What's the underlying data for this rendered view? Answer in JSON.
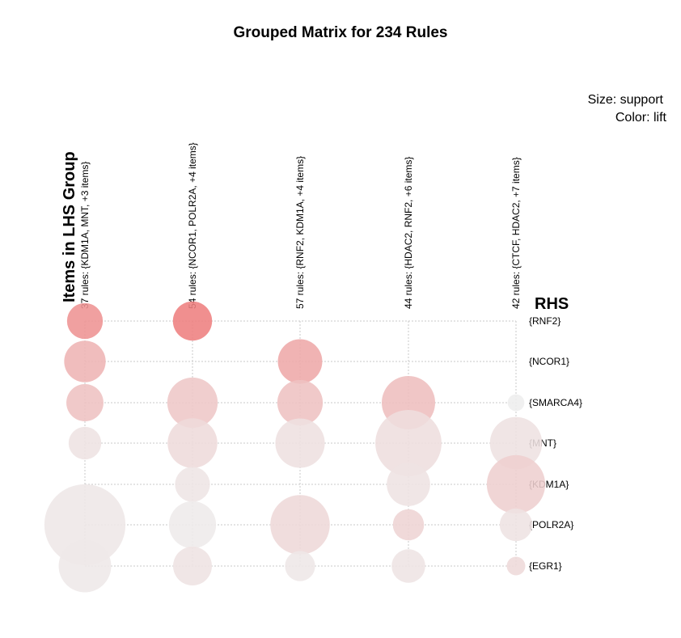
{
  "chart_data": {
    "type": "scatter",
    "title": "Grouped Matrix for 234 Rules",
    "size_label": "Size: support",
    "color_label": "Color: lift",
    "ylabel": "Items in LHS Group",
    "xlabel": "RHS",
    "lhs_groups": [
      "37 rules: {KDM1A, MNT, +3 items}",
      "54 rules: {NCOR1, POLR2A, +4 items}",
      "57 rules: {RNF2, KDM1A, +4 items}",
      "44 rules: {HDAC2, RNF2, +6 items}",
      "42 rules: {CTCF, HDAC2, +7 items}"
    ],
    "rhs_items": [
      "{RNF2}",
      "{NCOR1}",
      "{SMARCA4}",
      "{MNT}",
      "{KDM1A}",
      "{POLR2A}",
      "{EGR1}"
    ],
    "color_scale": {
      "low": "#eeeeee",
      "high": "#ee7f7f"
    },
    "points": [
      {
        "group": 0,
        "rhs": 0,
        "support": 0.41,
        "lift": 0.82
      },
      {
        "group": 0,
        "rhs": 1,
        "support": 0.55,
        "lift": 0.52
      },
      {
        "group": 0,
        "rhs": 2,
        "support": 0.44,
        "lift": 0.4
      },
      {
        "group": 0,
        "rhs": 3,
        "support": 0.34,
        "lift": 0.1
      },
      {
        "group": 0,
        "rhs": 5,
        "support": 2.1,
        "lift": 0.06
      },
      {
        "group": 0,
        "rhs": 6,
        "support": 0.88,
        "lift": 0.05
      },
      {
        "group": 1,
        "rhs": 0,
        "support": 0.49,
        "lift": 1.0
      },
      {
        "group": 1,
        "rhs": 2,
        "support": 0.81,
        "lift": 0.35
      },
      {
        "group": 1,
        "rhs": 3,
        "support": 0.79,
        "lift": 0.17
      },
      {
        "group": 1,
        "rhs": 4,
        "support": 0.39,
        "lift": 0.08
      },
      {
        "group": 1,
        "rhs": 5,
        "support": 0.71,
        "lift": 0.03
      },
      {
        "group": 1,
        "rhs": 6,
        "support": 0.48,
        "lift": 0.1
      },
      {
        "group": 2,
        "rhs": 1,
        "support": 0.63,
        "lift": 0.62
      },
      {
        "group": 2,
        "rhs": 2,
        "support": 0.66,
        "lift": 0.4
      },
      {
        "group": 2,
        "rhs": 3,
        "support": 0.78,
        "lift": 0.13
      },
      {
        "group": 2,
        "rhs": 5,
        "support": 1.13,
        "lift": 0.2
      },
      {
        "group": 2,
        "rhs": 6,
        "support": 0.29,
        "lift": 0.06
      },
      {
        "group": 3,
        "rhs": 2,
        "support": 0.91,
        "lift": 0.43
      },
      {
        "group": 3,
        "rhs": 3,
        "support": 1.4,
        "lift": 0.14
      },
      {
        "group": 3,
        "rhs": 4,
        "support": 0.6,
        "lift": 0.11
      },
      {
        "group": 3,
        "rhs": 5,
        "support": 0.31,
        "lift": 0.23
      },
      {
        "group": 3,
        "rhs": 6,
        "support": 0.36,
        "lift": 0.09
      },
      {
        "group": 4,
        "rhs": 2,
        "support": 0.09,
        "lift": 0.0
      },
      {
        "group": 4,
        "rhs": 3,
        "support": 0.87,
        "lift": 0.12
      },
      {
        "group": 4,
        "rhs": 4,
        "support": 1.09,
        "lift": 0.28
      },
      {
        "group": 4,
        "rhs": 5,
        "support": 0.34,
        "lift": 0.1
      },
      {
        "group": 4,
        "rhs": 6,
        "support": 0.11,
        "lift": 0.18
      }
    ]
  }
}
